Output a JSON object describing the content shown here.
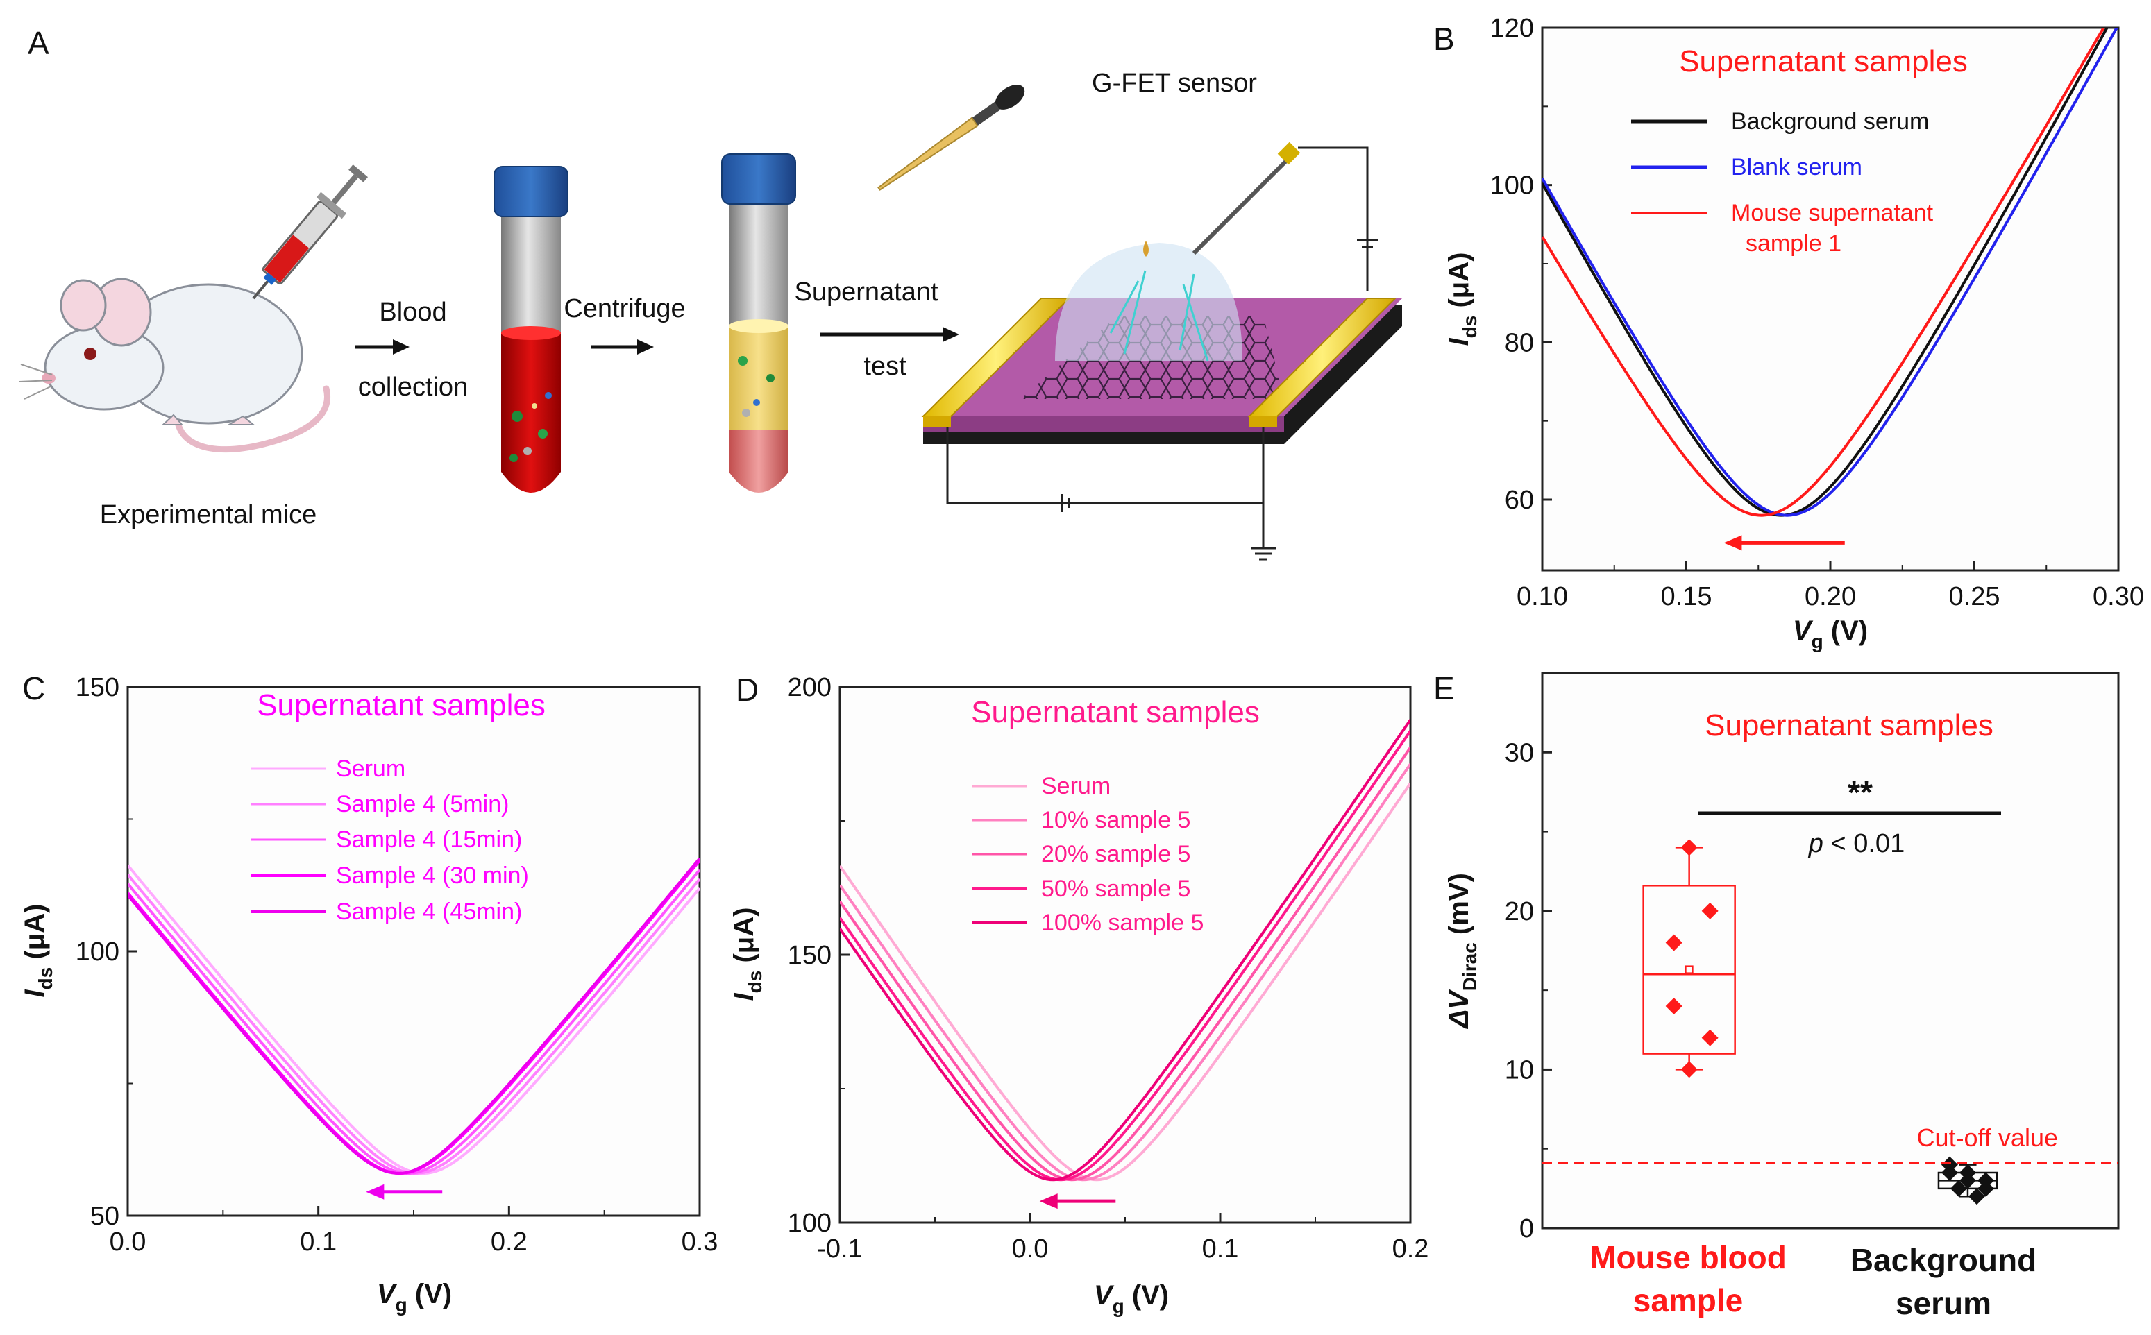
{
  "colors": {
    "red": "#ff1a1a",
    "magenta": "#ff00ff",
    "pink": "#ff1a8c",
    "black": "#111111",
    "blue": "#2222ee"
  },
  "panels": {
    "A": {
      "label": "A",
      "labels": {
        "mice": "Experimental mice",
        "blood": "Blood",
        "collection": "collection",
        "centrifuge": "Centrifuge",
        "supernatant": "Supernatant",
        "test": "test",
        "sensor": "G-FET sensor"
      }
    },
    "B": {
      "label": "B"
    },
    "C": {
      "label": "C"
    },
    "D": {
      "label": "D"
    },
    "E": {
      "label": "E"
    }
  },
  "chart_data": [
    {
      "id": "B",
      "type": "line",
      "title": "Supernatant samples",
      "xlabel": "V_g (V)",
      "xlabel_main": "V",
      "xlabel_sub": "g",
      "xlabel_unit": " (V)",
      "ylabel": "I_ds (μA)",
      "ylabel_main": "I",
      "ylabel_sub": "ds",
      "ylabel_unit": " (μA)",
      "xlim": [
        0.1,
        0.3
      ],
      "ylim": [
        51,
        120
      ],
      "xticks": [
        0.1,
        0.15,
        0.2,
        0.25,
        0.3
      ],
      "xtick_labels": [
        "0.10",
        "0.15",
        "0.20",
        "0.25",
        "0.30"
      ],
      "yticks": [
        60,
        80,
        100,
        120
      ],
      "ytick_labels": [
        "60",
        "80",
        "100",
        "120"
      ],
      "legend": [
        "Background serum",
        "Blank serum",
        "Mouse supernatant",
        "sample 1"
      ],
      "series": [
        {
          "name": "Background serum",
          "color": "#111111",
          "vdirac": 0.183,
          "imin": 58,
          "slope": 680
        },
        {
          "name": "Blank serum",
          "color": "#2222ee",
          "vdirac": 0.185,
          "imin": 58,
          "slope": 670
        },
        {
          "name": "Mouse supernatant sample 1",
          "color": "#ff1a1a",
          "vdirac": 0.176,
          "imin": 58,
          "slope": 640
        }
      ],
      "shift_arrow": {
        "from": 0.205,
        "to": 0.163,
        "y": 54.5,
        "direction": "left"
      }
    },
    {
      "id": "C",
      "type": "line",
      "title": "Supernatant samples",
      "xlabel": "V_g (V)",
      "xlabel_main": "V",
      "xlabel_sub": "g",
      "xlabel_unit": " (V)",
      "ylabel": "I_ds (μA)",
      "ylabel_main": "I",
      "ylabel_sub": "ds",
      "ylabel_unit": " (μA)",
      "xlim": [
        0,
        0.3
      ],
      "ylim": [
        50,
        150
      ],
      "xticks": [
        0,
        0.1,
        0.2,
        0.3
      ],
      "xtick_labels": [
        "0.0",
        "0.1",
        "0.2",
        "0.3"
      ],
      "yticks": [
        50,
        100,
        150
      ],
      "ytick_labels": [
        "50",
        "100",
        "150"
      ],
      "legend": [
        "Serum",
        "Sample 4 (5min)",
        "Sample 4 (15min)",
        "Sample 4 (30 min)",
        "Sample 4 (45min)"
      ],
      "series": [
        {
          "name": "Serum",
          "color": "#ffaaff",
          "vdirac": 0.155,
          "imin": 58,
          "slope": 440
        },
        {
          "name": "Sample 4 (5min)",
          "color": "#ff80ff",
          "vdirac": 0.151,
          "imin": 58,
          "slope": 440
        },
        {
          "name": "Sample 4 (15min)",
          "color": "#ff55ff",
          "vdirac": 0.147,
          "imin": 58,
          "slope": 440
        },
        {
          "name": "Sample 4 (30 min)",
          "color": "#ff00ff",
          "vdirac": 0.143,
          "imin": 58,
          "slope": 440
        },
        {
          "name": "Sample 4 (45min)",
          "color": "#ee00ee",
          "vdirac": 0.142,
          "imin": 58,
          "slope": 440
        }
      ],
      "shift_arrow": {
        "from": 0.165,
        "to": 0.125,
        "y": 54.5,
        "direction": "left"
      }
    },
    {
      "id": "D",
      "type": "line",
      "title": "Supernatant samples",
      "xlabel": "V_g (V)",
      "xlabel_main": "V",
      "xlabel_sub": "g",
      "xlabel_unit": " (V)",
      "ylabel": "I_ds (μA)",
      "ylabel_main": "I",
      "ylabel_sub": "ds",
      "ylabel_unit": " (μA)",
      "xlim": [
        -0.1,
        0.2
      ],
      "ylim": [
        100,
        200
      ],
      "xticks": [
        -0.1,
        0,
        0.1,
        0.2
      ],
      "xtick_labels": [
        "-0.1",
        "0.0",
        "0.1",
        "0.2"
      ],
      "yticks": [
        100,
        150,
        200
      ],
      "ytick_labels": [
        "100",
        "150",
        "200"
      ],
      "legend": [
        "Serum",
        "10% sample 5",
        "20% sample 5",
        "50% sample 5",
        "100% sample 5"
      ],
      "series": [
        {
          "name": "Serum",
          "color": "#ffaad4",
          "vdirac": 0.035,
          "imin": 108,
          "slope": 520
        },
        {
          "name": "10% sample 5",
          "color": "#ff80c0",
          "vdirac": 0.028,
          "imin": 108,
          "slope": 520
        },
        {
          "name": "20% sample 5",
          "color": "#ff55a8",
          "vdirac": 0.022,
          "imin": 108,
          "slope": 520
        },
        {
          "name": "50% sample 5",
          "color": "#ff1a8c",
          "vdirac": 0.016,
          "imin": 108,
          "slope": 520
        },
        {
          "name": "100% sample 5",
          "color": "#ee0077",
          "vdirac": 0.012,
          "imin": 108,
          "slope": 520
        }
      ],
      "shift_arrow": {
        "from": 0.045,
        "to": 0.005,
        "y": 104,
        "direction": "left"
      }
    },
    {
      "id": "E",
      "type": "box",
      "title": "Supernatant samples",
      "ylabel": "ΔV_Dirac (mV)",
      "ylabel_main": "ΔV",
      "ylabel_sub": "Dirac",
      "ylabel_unit": " (mV)",
      "ylim": [
        0,
        35
      ],
      "yticks": [
        0,
        10,
        20,
        30
      ],
      "ytick_labels": [
        "0",
        "10",
        "20",
        "30"
      ],
      "categories": [
        "Mouse blood sample",
        "Background serum"
      ],
      "category_lines": [
        [
          "Mouse blood",
          "sample"
        ],
        [
          "Background",
          "serum"
        ]
      ],
      "groups": [
        {
          "name": "Mouse blood sample",
          "color": "#ff1a1a",
          "box": [
            11,
            16,
            21.6
          ],
          "mean": 16.3,
          "whisker": [
            10,
            24
          ],
          "points": [
            24,
            20,
            18,
            14,
            12,
            10
          ]
        },
        {
          "name": "Background serum",
          "color": "#111111",
          "box": [
            2.5,
            3,
            3.5
          ],
          "mean": 3,
          "whisker": [
            2,
            4
          ],
          "points": [
            4,
            3.5,
            3.5,
            3,
            3,
            2.5,
            2.5,
            2
          ]
        }
      ],
      "cutoff": {
        "value": 4.1,
        "label": "Cut-off value"
      },
      "significance": {
        "stars": "**",
        "p_prefix": "p",
        "p_rest": " < 0.01"
      }
    }
  ]
}
